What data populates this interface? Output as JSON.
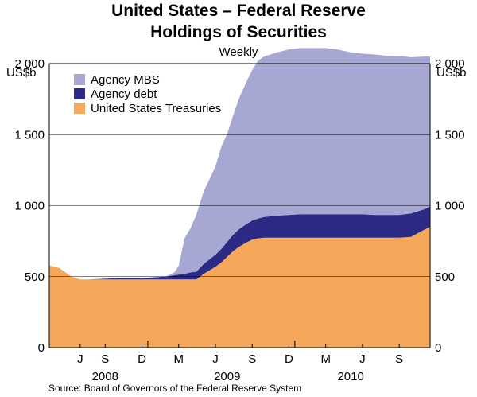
{
  "header": {
    "title_line1": "United States – Federal Reserve",
    "title_line2": "Holdings of Securities",
    "subtitle": "Weekly"
  },
  "axes": {
    "unit_left": "US$b",
    "unit_right": "US$b"
  },
  "footer": {
    "source": "Source: Board of Governors of the Federal Reserve System"
  },
  "chart_data": {
    "type": "area",
    "stacked": true,
    "title": "United States – Federal Reserve Holdings of Securities",
    "subtitle": "Weekly",
    "ylabel": "US$b",
    "ylim": [
      0,
      2000
    ],
    "yticks": [
      0,
      500,
      1000,
      1500,
      2000
    ],
    "ytick_labels": [
      "0",
      "500",
      "1 000",
      "1 500",
      "2 000"
    ],
    "xlim": [
      2008.33,
      2010.92
    ],
    "x_month_ticks": [
      {
        "label": "J",
        "x": 2008.54
      },
      {
        "label": "S",
        "x": 2008.71
      },
      {
        "label": "D",
        "x": 2008.96
      },
      {
        "label": "M",
        "x": 2009.21
      },
      {
        "label": "J",
        "x": 2009.46
      },
      {
        "label": "S",
        "x": 2009.71
      },
      {
        "label": "D",
        "x": 2009.96
      },
      {
        "label": "M",
        "x": 2010.21
      },
      {
        "label": "J",
        "x": 2010.46
      },
      {
        "label": "S",
        "x": 2010.71
      }
    ],
    "x_year_labels": [
      {
        "label": "2008",
        "x": 2008.71
      },
      {
        "label": "2009",
        "x": 2009.54
      },
      {
        "label": "2010",
        "x": 2010.38
      }
    ],
    "legend": [
      "Agency MBS",
      "Agency debt",
      "United States Treasuries"
    ],
    "legend_position": "top-left",
    "colors": {
      "Agency MBS": "#a7a7d3",
      "Agency debt": "#2b2b86",
      "United States Treasuries": "#f5a85a",
      "axis": "#000000",
      "grid": "#000000"
    },
    "x": [
      2008.33,
      2008.4,
      2008.48,
      2008.54,
      2008.6,
      2008.71,
      2008.8,
      2008.88,
      2008.96,
      2009.04,
      2009.12,
      2009.18,
      2009.21,
      2009.25,
      2009.29,
      2009.33,
      2009.38,
      2009.46,
      2009.5,
      2009.54,
      2009.58,
      2009.62,
      2009.67,
      2009.71,
      2009.75,
      2009.79,
      2009.88,
      2009.96,
      2010.04,
      2010.12,
      2010.21,
      2010.29,
      2010.38,
      2010.46,
      2010.54,
      2010.63,
      2010.71,
      2010.79,
      2010.88,
      2010.92
    ],
    "series": [
      {
        "name": "United States Treasuries",
        "values": [
          580,
          560,
          500,
          480,
          480,
          480,
          480,
          480,
          480,
          480,
          480,
          480,
          480,
          480,
          480,
          480,
          520,
          570,
          600,
          640,
          680,
          710,
          740,
          760,
          770,
          775,
          775,
          775,
          775,
          775,
          775,
          775,
          775,
          775,
          775,
          775,
          775,
          780,
          830,
          850
        ]
      },
      {
        "name": "Agency debt",
        "values": [
          0,
          0,
          0,
          0,
          0,
          5,
          10,
          10,
          10,
          15,
          20,
          30,
          35,
          40,
          50,
          55,
          70,
          85,
          95,
          105,
          115,
          125,
          130,
          135,
          140,
          145,
          155,
          160,
          165,
          165,
          165,
          165,
          165,
          165,
          160,
          160,
          160,
          165,
          145,
          145
        ]
      },
      {
        "name": "Agency MBS",
        "values": [
          0,
          0,
          0,
          0,
          0,
          0,
          0,
          0,
          0,
          0,
          0,
          20,
          60,
          250,
          310,
          400,
          510,
          620,
          720,
          760,
          840,
          920,
          1000,
          1060,
          1110,
          1130,
          1150,
          1165,
          1170,
          1170,
          1170,
          1160,
          1140,
          1130,
          1130,
          1120,
          1120,
          1100,
          1075,
          1055
        ]
      }
    ]
  }
}
